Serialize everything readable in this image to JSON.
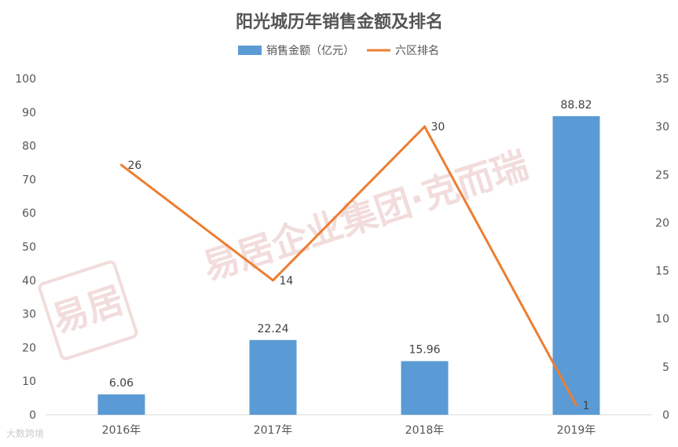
{
  "chart_data": {
    "type": "bar",
    "title": "阳光城历年销售金额及排名",
    "categories": [
      "2016年",
      "2017年",
      "2018年",
      "2019年"
    ],
    "series": [
      {
        "name": "销售金额（亿元）",
        "type": "bar",
        "axis": "left",
        "values": [
          6.06,
          22.24,
          15.96,
          88.82
        ],
        "labels": [
          "6.06",
          "22.24",
          "15.96",
          "88.82"
        ],
        "color": "#5b9bd5"
      },
      {
        "name": "六区排名",
        "type": "line",
        "axis": "right",
        "values": [
          26,
          14,
          30,
          1
        ],
        "labels": [
          "26",
          "14",
          "30",
          "1"
        ],
        "color": "#ed7d31"
      }
    ],
    "y_left": {
      "ylim": [
        0,
        100
      ],
      "ticks": [
        "0",
        "10",
        "20",
        "30",
        "40",
        "50",
        "60",
        "70",
        "80",
        "90",
        "100"
      ]
    },
    "y_right": {
      "ylim": [
        0,
        35
      ],
      "ticks": [
        "0",
        "5",
        "10",
        "15",
        "20",
        "25",
        "30",
        "35"
      ]
    },
    "grid": false,
    "legend": "top-center"
  },
  "watermark": {
    "text": "易居企业集团·克而瑞",
    "seal": "易居",
    "corner": "大数跨境"
  }
}
